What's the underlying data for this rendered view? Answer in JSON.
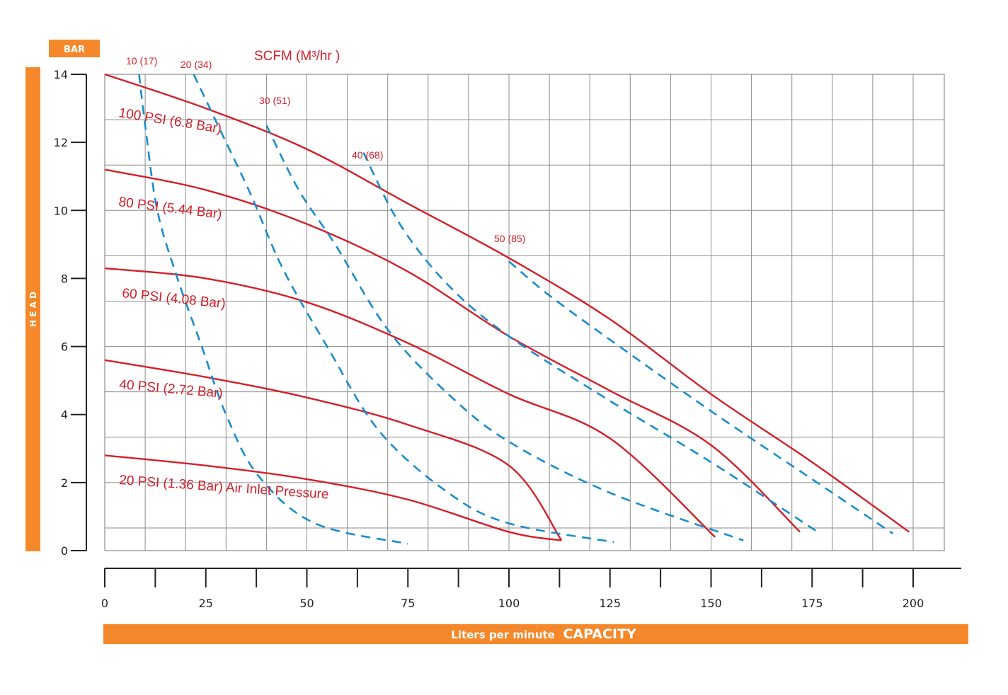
{
  "colors": {
    "accent": "#f5882a",
    "psi_curve": "#d4202a",
    "scfm_curve": "#1a8ccc",
    "grid": "#8c8c8c"
  },
  "chart_data": {
    "type": "line",
    "title": "",
    "ylabel": "H E A D",
    "yunit": "BAR",
    "xlabel_prefix": "Liters per minute",
    "xlabel_emph": "CAPACITY",
    "scfm_header": "SCFM (M³/hr )",
    "xlim": [
      0,
      200
    ],
    "ylim": [
      0,
      14
    ],
    "x_ticks": [
      0,
      25,
      50,
      75,
      100,
      125,
      150,
      175,
      200
    ],
    "y_ticks": [
      0,
      2,
      4,
      6,
      8,
      10,
      12,
      14
    ],
    "grid": true,
    "series": [
      {
        "name": "100 PSI (6.8 Bar)",
        "kind": "air_pressure",
        "points": [
          [
            0,
            14
          ],
          [
            25,
            13
          ],
          [
            50,
            11.8
          ],
          [
            75,
            10.2
          ],
          [
            100,
            8.6
          ],
          [
            125,
            6.8
          ],
          [
            150,
            4.6
          ],
          [
            175,
            2.6
          ],
          [
            199,
            0.55
          ]
        ]
      },
      {
        "name": "80 PSI (5.44 Bar)",
        "kind": "air_pressure",
        "points": [
          [
            0,
            11.2
          ],
          [
            25,
            10.6
          ],
          [
            50,
            9.6
          ],
          [
            75,
            8.2
          ],
          [
            100,
            6.3
          ],
          [
            125,
            4.7
          ],
          [
            150,
            3.1
          ],
          [
            172,
            0.55
          ]
        ]
      },
      {
        "name": "60 PSI (4.08 Bar)",
        "kind": "air_pressure",
        "points": [
          [
            0,
            8.3
          ],
          [
            25,
            8.0
          ],
          [
            50,
            7.3
          ],
          [
            75,
            6.1
          ],
          [
            100,
            4.6
          ],
          [
            125,
            3.3
          ],
          [
            151,
            0.4
          ]
        ]
      },
      {
        "name": "40 PSI (2.72 Bar)",
        "kind": "air_pressure",
        "points": [
          [
            0,
            5.6
          ],
          [
            25,
            5.1
          ],
          [
            50,
            4.5
          ],
          [
            75,
            3.7
          ],
          [
            100,
            2.5
          ],
          [
            113,
            0.3
          ]
        ]
      },
      {
        "name": "20 PSI (1.36 Bar) Air Inlet Pressure",
        "kind": "air_pressure",
        "points": [
          [
            0,
            2.8
          ],
          [
            25,
            2.5
          ],
          [
            50,
            2.1
          ],
          [
            75,
            1.5
          ],
          [
            100,
            0.55
          ],
          [
            113,
            0.3
          ]
        ]
      },
      {
        "name": "10 (17)",
        "kind": "scfm",
        "points": [
          [
            8.5,
            14
          ],
          [
            10,
            12.5
          ],
          [
            13,
            10
          ],
          [
            18,
            8
          ],
          [
            24,
            6
          ],
          [
            30,
            4
          ],
          [
            38,
            2.2
          ],
          [
            52,
            0.8
          ],
          [
            75,
            0.2
          ]
        ]
      },
      {
        "name": "20 (34)",
        "kind": "scfm",
        "points": [
          [
            22,
            14
          ],
          [
            28,
            12.5
          ],
          [
            36,
            10.5
          ],
          [
            44,
            8.3
          ],
          [
            55,
            6
          ],
          [
            68,
            3.5
          ],
          [
            85,
            1.7
          ],
          [
            100,
            0.8
          ],
          [
            126,
            0.25
          ]
        ]
      },
      {
        "name": "30 (51)",
        "kind": "scfm",
        "points": [
          [
            40,
            12.5
          ],
          [
            48,
            10.6
          ],
          [
            57,
            9
          ],
          [
            70,
            6.5
          ],
          [
            85,
            4.6
          ],
          [
            100,
            3.2
          ],
          [
            125,
            1.7
          ],
          [
            158,
            0.3
          ]
        ]
      },
      {
        "name": "40 (68)",
        "kind": "scfm",
        "points": [
          [
            64,
            11.7
          ],
          [
            73,
            9.6
          ],
          [
            85,
            7.8
          ],
          [
            100,
            6.3
          ],
          [
            125,
            4.4
          ],
          [
            150,
            2.6
          ],
          [
            177,
            0.5
          ]
        ]
      },
      {
        "name": "50 (85)",
        "kind": "scfm",
        "points": [
          [
            100,
            8.5
          ],
          [
            110,
            7.5
          ],
          [
            125,
            6.2
          ],
          [
            150,
            4.1
          ],
          [
            175,
            2.1
          ],
          [
            195,
            0.5
          ]
        ]
      }
    ]
  }
}
